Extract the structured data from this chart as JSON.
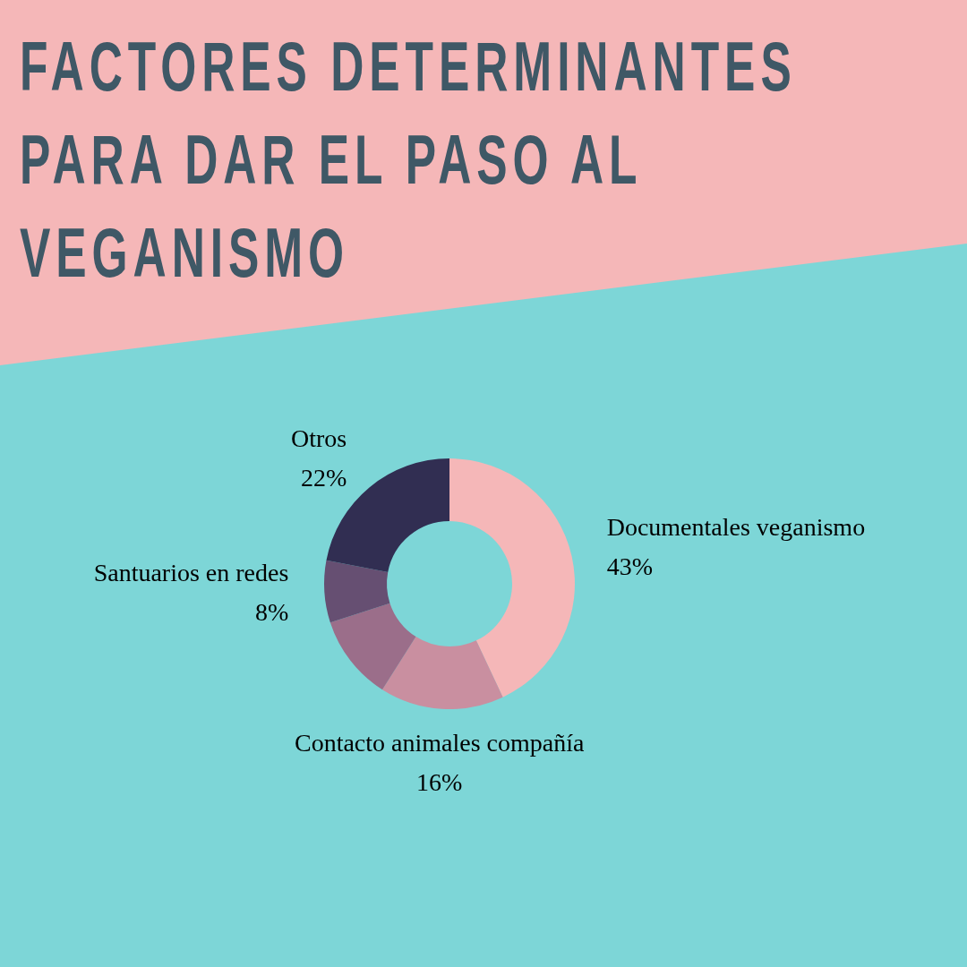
{
  "chart_data": {
    "type": "donut",
    "title": "FACTORES DETERMINANTES PARA DAR EL PASO AL VEGANISMO",
    "categories": [
      "Documentales veganismo",
      "Contacto animales compañía",
      null,
      "Santuarios en redes",
      "Otros"
    ],
    "values": [
      43,
      16,
      11,
      8,
      22
    ],
    "value_labels": [
      "43%",
      "16%",
      null,
      "8%",
      "22%"
    ],
    "colors": [
      "#f5b7b8",
      "#c98fa0",
      "#9b6e8a",
      "#664f72",
      "#312e52"
    ],
    "legend": false
  }
}
